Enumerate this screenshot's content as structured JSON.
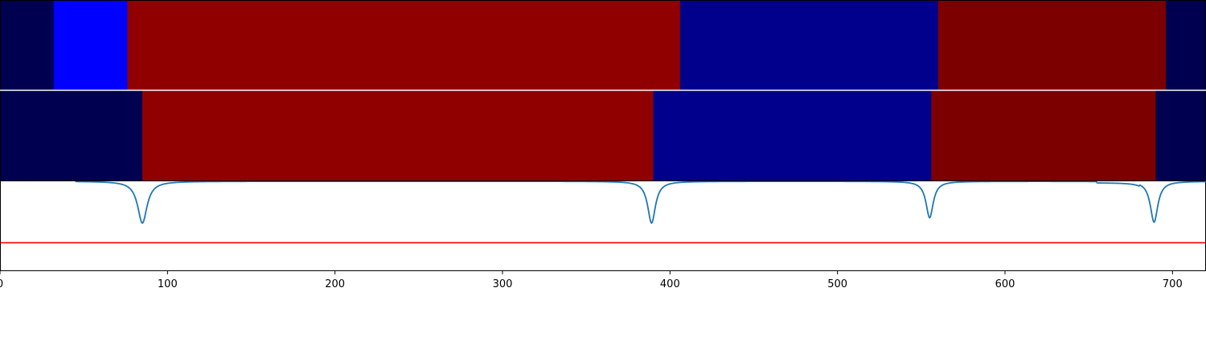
{
  "chart_data": [
    {
      "type": "heatmap",
      "row": "top",
      "xlim": [
        0,
        720
      ],
      "segments": [
        {
          "start": 0,
          "end": 32,
          "color": "#000050"
        },
        {
          "start": 32,
          "end": 76,
          "color": "#0000ff"
        },
        {
          "start": 76,
          "end": 406,
          "color": "#910000"
        },
        {
          "start": 406,
          "end": 560,
          "color": "#00008c"
        },
        {
          "start": 560,
          "end": 696,
          "color": "#7d0000"
        },
        {
          "start": 696,
          "end": 720,
          "color": "#000050"
        }
      ]
    },
    {
      "type": "heatmap",
      "row": "middle",
      "xlim": [
        0,
        720
      ],
      "segments": [
        {
          "start": 0,
          "end": 85,
          "color": "#000050"
        },
        {
          "start": 85,
          "end": 390,
          "color": "#910000"
        },
        {
          "start": 390,
          "end": 556,
          "color": "#00008c"
        },
        {
          "start": 556,
          "end": 690,
          "color": "#7d0000"
        },
        {
          "start": 690,
          "end": 720,
          "color": "#000050"
        }
      ]
    },
    {
      "type": "line",
      "xlim": [
        0,
        720
      ],
      "ylim": [
        0,
        1
      ],
      "xticks": [
        0,
        100,
        200,
        300,
        400,
        500,
        600,
        700
      ],
      "line_color": "#1f77b4",
      "threshold": {
        "y": 0.31,
        "color": "#ff0000"
      },
      "x_start": 45,
      "x_end": 720,
      "baseline": 1.0,
      "dips": [
        {
          "center": 85,
          "depth": 0.47,
          "width": 3.4
        },
        {
          "center": 389,
          "depth": 0.47,
          "width": 2.8
        },
        {
          "center": 555,
          "depth": 0.41,
          "width": 2.6
        },
        {
          "center": 689,
          "depth": 0.46,
          "width": 2.7
        }
      ],
      "shelves": [
        {
          "start": 655,
          "end": 680,
          "level": 0.985
        }
      ]
    }
  ]
}
